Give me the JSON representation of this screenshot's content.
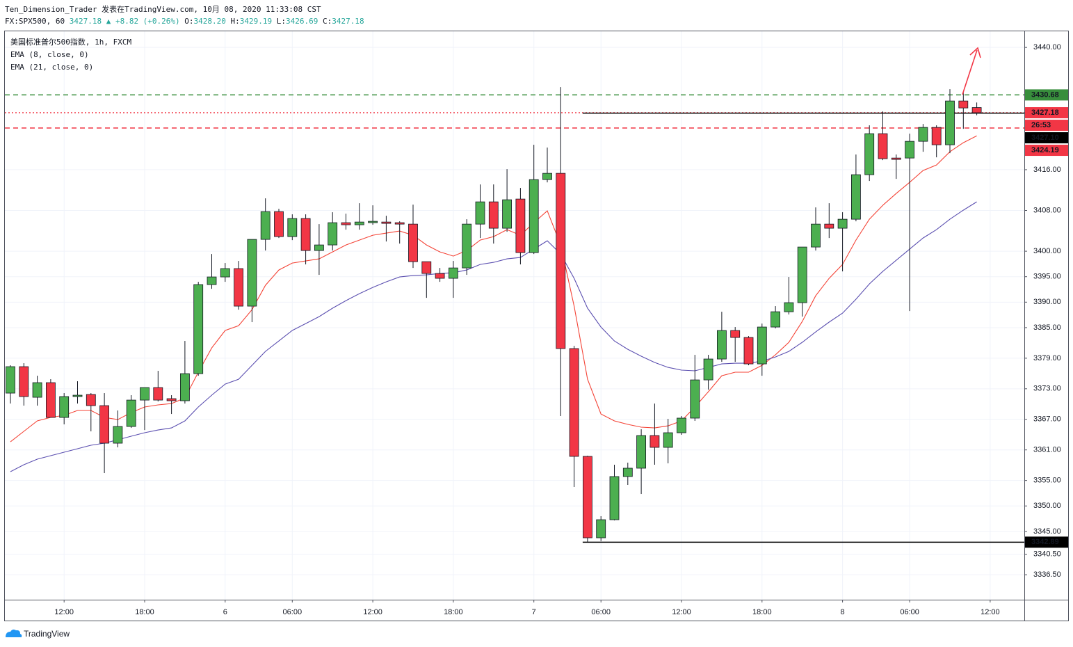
{
  "header": {
    "line1": "Ten_Dimension_Trader 发表在TradingView.com, 10月 08, 2020 11:33:08 CST",
    "symbol": "FX:SPX500, 60",
    "price": "3427.18",
    "change": "▲ +8.82 (+0.26%)",
    "ohlc": [
      {
        "key": "O:",
        "value": "3428.20"
      },
      {
        "key": "H:",
        "value": "3429.19"
      },
      {
        "key": "L:",
        "value": "3426.69"
      },
      {
        "key": "C:",
        "value": "3427.18"
      }
    ]
  },
  "chart_data": {
    "type": "candlestick",
    "categories": [
      null,
      null,
      null,
      null,
      "12:00",
      null,
      null,
      null,
      null,
      null,
      "18:00",
      null,
      null,
      null,
      null,
      null,
      "6",
      null,
      null,
      null,
      null,
      "06:00",
      null,
      null,
      null,
      null,
      null,
      "12:00",
      null,
      null,
      null,
      null,
      null,
      "18:00",
      null,
      null,
      null,
      null,
      null,
      "7",
      null,
      null,
      null,
      null,
      "06:00",
      null,
      null,
      null,
      null,
      null,
      "12:00",
      null,
      null,
      null,
      null,
      null,
      "18:00",
      null,
      null,
      null,
      null,
      null,
      "8",
      null,
      null,
      null,
      null,
      "06:00",
      null,
      null,
      null,
      null,
      null,
      "12:00"
    ],
    "series": [
      {
        "name": "美国标准普尔500指数, 1h, FXCM",
        "type": "candlestick",
        "up_color": "#4caf50",
        "down_color": "#f23645",
        "open": [
          3372.15,
          3377.34,
          3371.33,
          3374.2,
          3367.37,
          3371.47,
          3371.88,
          3369.69,
          3362.32,
          3365.6,
          3370.78,
          3373.24,
          3371.06,
          3370.65,
          3375.97,
          3393.45,
          3394.95,
          3396.59,
          3389.22,
          3402.32,
          3407.78,
          3402.87,
          3406.42,
          3400.14,
          3401.23,
          3405.6,
          3405.19,
          3405.6,
          3405.73,
          3405.6,
          3405.32,
          3397.95,
          3395.63,
          3394.68,
          3396.72,
          3405.32,
          3409.69,
          3404.51,
          3410.24,
          3399.73,
          3414.06,
          3415.29,
          3380.89,
          3359.73,
          3343.75,
          3347.3,
          3355.77,
          3357.41,
          3363.82,
          3361.5,
          3364.37,
          3367.24,
          3374.74,
          3378.84,
          3384.44,
          3383.07,
          3377.88,
          3385.12,
          3388.12,
          3389.9,
          3400.82,
          3405.32,
          3404.51,
          3406.28,
          3415.02,
          3423.07,
          3418.29,
          3418.29,
          3421.57,
          3424.3,
          3420.89,
          3429.49,
          3428.2,
          null
        ],
        "high": [
          3377.61,
          3378.02,
          3375.56,
          3374.88,
          3372.15,
          3374.47,
          3372.15,
          3372.15,
          3368.74,
          3371.74,
          3373.24,
          3376.52,
          3371.74,
          3382.39,
          3393.99,
          3399.45,
          3397.68,
          3398.09,
          3402.32,
          3410.38,
          3408.33,
          3407.24,
          3407.24,
          3405.32,
          3407.65,
          3407.37,
          3409.42,
          3409.01,
          3406.96,
          3405.87,
          3409.15,
          3397.95,
          3396.72,
          3398.09,
          3406.28,
          3413.11,
          3413.11,
          3416.11,
          3412.42,
          3420.89,
          3420.34,
          3432.22,
          3381.43,
          3359.86,
          3347.99,
          3358.09,
          3358.5,
          3365.05,
          3370.1,
          3367.1,
          3367.65,
          3379.66,
          3379.66,
          3388.12,
          3385.12,
          3383.34,
          3385.8,
          3389.22,
          3394.95,
          3400.82,
          3408.6,
          3409.42,
          3407.65,
          3418.98,
          3424.71,
          3427.44,
          3418.98,
          3423.07,
          3424.98,
          3424.71,
          3431.81,
          3431.26,
          3429.19,
          null
        ],
        "low": [
          3370.1,
          3369.69,
          3369.69,
          3367.37,
          3366.01,
          3370.1,
          3364.64,
          3356.45,
          3361.5,
          3365.32,
          3364.91,
          3370.51,
          3368.05,
          3370.1,
          3375.56,
          3392.63,
          3393.99,
          3388.53,
          3386.08,
          3400.14,
          3402.59,
          3402.18,
          3397.41,
          3395.36,
          3400.14,
          3404.23,
          3404.23,
          3405.19,
          3401.91,
          3401.5,
          3396.72,
          3390.85,
          3393.99,
          3390.85,
          3395.36,
          3402.59,
          3401.5,
          3403.82,
          3397.41,
          3399.45,
          3413.52,
          3367.65,
          3353.72,
          3342.89,
          3343.1,
          3347.17,
          3354.13,
          3352.35,
          3358.09,
          3358.36,
          3363.96,
          3366.69,
          3372.83,
          3378.29,
          3378.29,
          3377.61,
          3375.56,
          3384.85,
          3387.58,
          3387.17,
          3400.14,
          3402.59,
          3396.04,
          3405.87,
          3413.79,
          3417.88,
          3414.2,
          3388.26,
          3419.52,
          3418.43,
          3419.25,
          3424.03,
          3426.69,
          null
        ],
        "close": [
          3377.34,
          3371.47,
          3374.2,
          3367.37,
          3371.47,
          3371.74,
          3369.69,
          3362.32,
          3365.6,
          3370.78,
          3373.24,
          3370.78,
          3370.65,
          3375.97,
          3393.45,
          3394.95,
          3396.59,
          3389.22,
          3402.32,
          3407.78,
          3402.87,
          3406.42,
          3400.14,
          3401.23,
          3405.6,
          3405.19,
          3405.73,
          3405.87,
          3405.46,
          3405.32,
          3397.95,
          3395.63,
          3394.68,
          3396.72,
          3405.32,
          3409.69,
          3404.51,
          3410.1,
          3399.73,
          3414.06,
          3415.29,
          3380.89,
          3359.73,
          3343.75,
          3347.3,
          3355.77,
          3357.41,
          3363.82,
          3361.5,
          3364.37,
          3367.24,
          3374.74,
          3378.84,
          3384.44,
          3383.07,
          3377.88,
          3385.12,
          3388.12,
          3389.9,
          3400.82,
          3405.32,
          3404.51,
          3406.28,
          3415.02,
          3423.07,
          3418.16,
          3418.02,
          3421.57,
          3424.3,
          3420.89,
          3429.49,
          3428.12,
          3427.18,
          null
        ]
      },
      {
        "name": "EMA (8, close, 0)",
        "type": "line",
        "color": "#f44336",
        "values": [
          3362.59,
          3364.64,
          3366.69,
          3367.37,
          3367.78,
          3368.74,
          3368.74,
          3367.37,
          3366.96,
          3368.33,
          3369.42,
          3369.83,
          3370.1,
          3371.19,
          3376.25,
          3381.02,
          3384.44,
          3385.39,
          3388.53,
          3393.31,
          3396.31,
          3397.68,
          3398.09,
          3398.5,
          3399.86,
          3401.23,
          3402.18,
          3403.14,
          3403.55,
          3403.96,
          3403.14,
          3401.23,
          3399.86,
          3399.04,
          3400.14,
          3402.18,
          3402.87,
          3404.23,
          3403.14,
          3405.6,
          3407.92,
          3401.23,
          3389.22,
          3374.88,
          3368.05,
          3366.69,
          3366.01,
          3365.46,
          3365.32,
          3365.73,
          3366.69,
          3369.42,
          3372.42,
          3375.56,
          3376.25,
          3376.25,
          3377.61,
          3379.66,
          3382.12,
          3386.21,
          3391.26,
          3394.68,
          3397.41,
          3402.18,
          3406.28,
          3409.01,
          3411.33,
          3413.52,
          3415.84,
          3416.93,
          3419.52,
          3421.3,
          3422.66,
          null
        ]
      },
      {
        "name": "EMA (21, close, 0)",
        "type": "line",
        "color": "#5b4fb0",
        "values": [
          3356.72,
          3358.09,
          3359.18,
          3359.86,
          3360.55,
          3361.23,
          3361.91,
          3362.32,
          3363.0,
          3363.69,
          3364.37,
          3364.91,
          3365.32,
          3366.69,
          3369.42,
          3371.74,
          3373.92,
          3374.88,
          3377.61,
          3380.34,
          3382.39,
          3384.44,
          3385.8,
          3387.17,
          3388.81,
          3390.31,
          3391.67,
          3392.9,
          3393.99,
          3394.95,
          3395.22,
          3395.36,
          3395.63,
          3395.77,
          3396.31,
          3397.41,
          3397.82,
          3398.5,
          3398.77,
          3400.41,
          3402.05,
          3399.45,
          3394.68,
          3388.81,
          3385.12,
          3382.39,
          3380.75,
          3379.39,
          3378.16,
          3377.2,
          3376.66,
          3376.52,
          3377.2,
          3377.88,
          3378.02,
          3378.02,
          3378.43,
          3379.25,
          3380.34,
          3382.12,
          3384.16,
          3386.08,
          3387.85,
          3390.58,
          3393.58,
          3396.04,
          3398.23,
          3400.41,
          3402.59,
          3404.23,
          3406.28,
          3408.05,
          3409.69,
          null
        ]
      }
    ],
    "ylim": [
      3331.6,
      3443.3
    ],
    "yticks": [
      {
        "value": 3440,
        "label": "3440.00"
      },
      {
        "value": 3416,
        "label": "3416.00"
      },
      {
        "value": 3408,
        "label": "3408.00"
      },
      {
        "value": 3400,
        "label": "3400.00"
      },
      {
        "value": 3395,
        "label": "3395.00"
      },
      {
        "value": 3390,
        "label": "3390.00"
      },
      {
        "value": 3385,
        "label": "3385.00"
      },
      {
        "value": 3379,
        "label": "3379.00"
      },
      {
        "value": 3373,
        "label": "3373.00"
      },
      {
        "value": 3367,
        "label": "3367.00"
      },
      {
        "value": 3361,
        "label": "3361.00"
      },
      {
        "value": 3355,
        "label": "3355.00"
      },
      {
        "value": 3350,
        "label": "3350.00"
      },
      {
        "value": 3345,
        "label": "3345.00"
      },
      {
        "value": 3340.5,
        "label": "3340.50"
      },
      {
        "value": 3336.5,
        "label": "3336.50"
      }
    ],
    "grid": true,
    "levels": [
      {
        "value": 3430.68,
        "color": "#388e3c",
        "style": "dashed"
      },
      {
        "value": 3427.18,
        "color": "#f23645",
        "style": "dotted",
        "countdown": "26:53"
      },
      {
        "value": 3424.19,
        "color": "#f23645",
        "style": "dashed"
      },
      {
        "value": 3427.1,
        "label": "3427.10",
        "color": "#000000",
        "style": "solid"
      },
      {
        "value": 3342.89,
        "color": "#000000",
        "style": "solid"
      }
    ]
  },
  "footer": {
    "brand": "TradingView"
  }
}
